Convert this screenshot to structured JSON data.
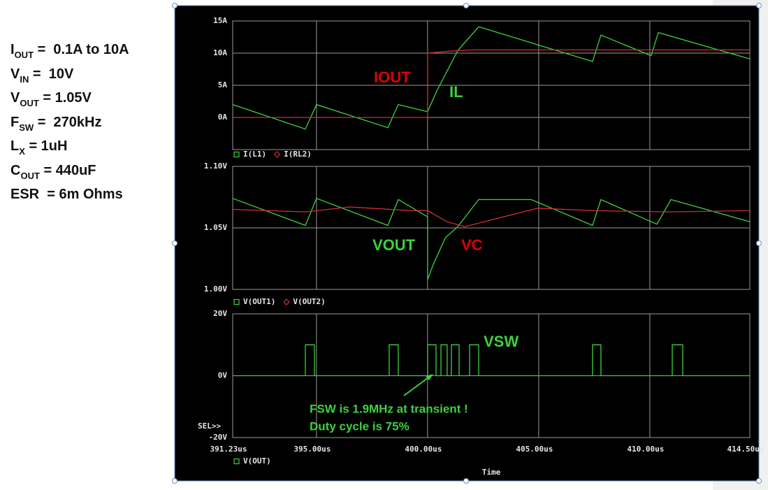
{
  "specs": [
    {
      "main": "I",
      "sub": "OUT",
      "rest": " =  0.1A to 10A"
    },
    {
      "main": "V",
      "sub": "IN",
      "rest": " =  10V"
    },
    {
      "main": "V",
      "sub": "OUT",
      "rest": " = 1.05V"
    },
    {
      "main": "F",
      "sub": "SW",
      "rest": " =  270kHz"
    },
    {
      "main": "L",
      "sub": "X",
      "rest": " = 1uH"
    },
    {
      "main": "C",
      "sub": "OUT",
      "rest": " = 440uF"
    },
    {
      "main": "ESR",
      "sub": "",
      "rest": "  = 6m Ohms"
    }
  ],
  "chart_data": [
    {
      "type": "line",
      "xlim": [
        391.23,
        414.5
      ],
      "xticks": [
        391.23,
        395,
        400,
        405,
        410,
        414.5
      ],
      "ylim": [
        -5,
        15
      ],
      "yticks": [
        {
          "value": 0,
          "label": "0A"
        },
        {
          "value": 5,
          "label": "5A"
        },
        {
          "value": 10,
          "label": "10A"
        },
        {
          "value": 15,
          "label": "15A"
        }
      ],
      "grid": true,
      "series": [
        {
          "name": "I(L1)",
          "color": "#3cd23c",
          "marker": "square",
          "x": [
            391.23,
            394.5,
            395.0,
            398.21,
            398.68,
            400.0,
            400.41,
            401.36,
            402.3,
            407.42,
            407.8,
            410.06,
            410.38,
            414.5
          ],
          "values": [
            2.0,
            -1.8,
            2.0,
            -1.6,
            2.0,
            0.9,
            4.1,
            10.4,
            14.1,
            8.7,
            12.8,
            9.6,
            13.2,
            9.1
          ]
        },
        {
          "name": "I(RL2)",
          "color": "#d03030",
          "marker": "diamond",
          "x": [
            391.23,
            400.0,
            400.0,
            401.0,
            402.0,
            414.5
          ],
          "values": [
            0,
            0,
            10.0,
            10.3,
            10.5,
            10.5
          ]
        }
      ],
      "annotations": [
        {
          "text": "IOUT",
          "color": "#e00000"
        },
        {
          "text": "IL",
          "color": "#3cd23c"
        }
      ]
    },
    {
      "type": "line",
      "xlim": [
        391.23,
        414.5
      ],
      "xticks": [
        391.23,
        395,
        400,
        405,
        410,
        414.5
      ],
      "ylim": [
        1.0,
        1.1
      ],
      "yticks": [
        {
          "value": 1.0,
          "label": "1.00V"
        },
        {
          "value": 1.05,
          "label": "1.05V"
        },
        {
          "value": 1.1,
          "label": "1.10V"
        }
      ],
      "grid": true,
      "series": [
        {
          "name": "V(OUT1)",
          "color": "#3cd23c",
          "marker": "square",
          "x": [
            391.23,
            394.5,
            395.0,
            398.21,
            398.68,
            400.0,
            400.0,
            400.25,
            400.5,
            400.8,
            401.36,
            402.3,
            404.66,
            407.42,
            407.8,
            410.06,
            410.32,
            410.95,
            414.5
          ],
          "values": [
            1.074,
            1.052,
            1.074,
            1.052,
            1.073,
            1.059,
            1.008,
            1.02,
            1.03,
            1.042,
            1.051,
            1.073,
            1.073,
            1.052,
            1.073,
            1.055,
            1.053,
            1.073,
            1.055
          ]
        },
        {
          "name": "V(OUT2)",
          "color": "#d03030",
          "marker": "diamond",
          "x": [
            391.23,
            394.5,
            396.48,
            399.31,
            400.0,
            400.88,
            401.67,
            402.77,
            404.97,
            407.49,
            410.95,
            414.5
          ],
          "values": [
            1.065,
            1.063,
            1.067,
            1.064,
            1.064,
            1.055,
            1.051,
            1.056,
            1.066,
            1.064,
            1.063,
            1.064
          ]
        }
      ],
      "annotations": [
        {
          "text": "VOUT",
          "color": "#3cd23c"
        },
        {
          "text": "VC",
          "color": "#e00000"
        }
      ]
    },
    {
      "type": "line",
      "xlim": [
        391.23,
        414.5
      ],
      "xticks": [
        {
          "value": 391.23,
          "label": "391.23us"
        },
        {
          "value": 395,
          "label": "395.00us"
        },
        {
          "value": 400,
          "label": "400.00us"
        },
        {
          "value": 405,
          "label": "405.00us"
        },
        {
          "value": 410,
          "label": "410.00us"
        },
        {
          "value": 414.5,
          "label": "414.50us"
        }
      ],
      "xlabel": "Time",
      "ylim": [
        -20,
        20
      ],
      "yticks": [
        {
          "value": -20,
          "label": "-20V"
        },
        {
          "value": 0,
          "label": "0V"
        },
        {
          "value": 20,
          "label": "20V"
        }
      ],
      "grid": true,
      "sel_label": "SEL>>",
      "series": [
        {
          "name": "V(OUT)",
          "color": "#3cd23c",
          "marker": "square",
          "x": [
            391.23,
            394.5,
            394.5,
            394.91,
            394.91,
            398.27,
            398.27,
            398.68,
            398.68,
            400.0,
            400.0,
            400.38,
            400.38,
            400.6,
            400.6,
            400.88,
            400.88,
            401.07,
            401.07,
            401.42,
            401.42,
            401.89,
            401.89,
            402.3,
            402.3,
            407.42,
            407.42,
            407.8,
            407.8,
            411.01,
            411.01,
            411.48,
            411.48,
            414.5
          ],
          "values": [
            0,
            0,
            10,
            10,
            0,
            0,
            10,
            10,
            0,
            0,
            10,
            10,
            0,
            0,
            10,
            10,
            0,
            0,
            10,
            10,
            0,
            0,
            10,
            10,
            0,
            0,
            10,
            10,
            0,
            0,
            10,
            10,
            0,
            0
          ]
        }
      ],
      "annotations": [
        {
          "text": "VSW",
          "color": "#3cd23c"
        },
        {
          "text": "FSW is 1.9MHz at transient !",
          "color": "#3cd23c"
        },
        {
          "text": "Duty cycle is 75%",
          "color": "#3cd23c"
        }
      ]
    }
  ]
}
